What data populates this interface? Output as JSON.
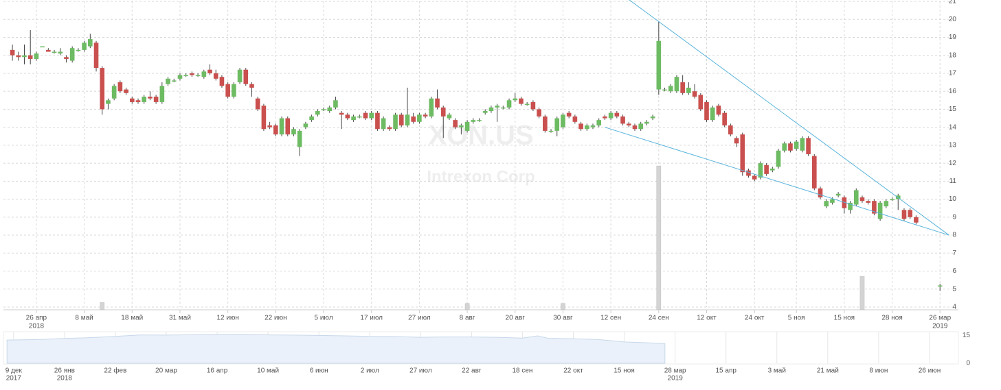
{
  "chart_data": {
    "type": "candlestick",
    "watermark": "XON.US",
    "watermark_subtitle": "Intrexon Corp",
    "up_color": "#6dbb62",
    "down_color": "#c9504e",
    "trend_color": "#5ab4dc",
    "volume_color": "#d4d4d4",
    "grid": true,
    "xlim": [
      -1.5,
      157.5
    ],
    "ylim": [
      4,
      21.1
    ],
    "yticks": [
      4,
      5,
      6,
      7,
      8,
      9,
      10,
      11,
      12,
      13,
      14,
      15,
      16,
      17,
      18,
      19,
      20,
      21
    ],
    "xticks": [
      {
        "value": 4,
        "label": "26 апр"
      },
      {
        "value": 12,
        "label": "8 май"
      },
      {
        "value": 20,
        "label": "18 май"
      },
      {
        "value": 28,
        "label": "31 май"
      },
      {
        "value": 36,
        "label": "12 июн"
      },
      {
        "value": 44,
        "label": "22 июн"
      },
      {
        "value": 52,
        "label": "5 июл"
      },
      {
        "value": 60,
        "label": "17 июл"
      },
      {
        "value": 68,
        "label": "27 июл"
      },
      {
        "value": 76,
        "label": "8 авг"
      },
      {
        "value": 84,
        "label": "20 авг"
      },
      {
        "value": 92,
        "label": "30 авг"
      },
      {
        "value": 100,
        "label": "12 сен"
      },
      {
        "value": 108,
        "label": "24 сен"
      },
      {
        "value": 116,
        "label": "12 окт"
      },
      {
        "value": 124,
        "label": "24 окт"
      },
      {
        "value": 131,
        "label": "5 ноя"
      },
      {
        "value": 139,
        "label": "15 ноя"
      },
      {
        "value": 147,
        "label": "28 ноя"
      },
      {
        "value": 155,
        "label": "26 мар"
      }
    ],
    "xtick_years": [
      {
        "value": 4,
        "label": "2018"
      },
      {
        "value": 155,
        "label": "2019"
      }
    ],
    "candles": [
      [
        18.3,
        18.6,
        17.7,
        18.0
      ],
      [
        18.0,
        18.2,
        17.7,
        17.9
      ],
      [
        17.9,
        18.6,
        17.5,
        18.0
      ],
      [
        18.0,
        19.4,
        17.5,
        17.8
      ],
      [
        17.8,
        18.2,
        17.7,
        18.1
      ],
      [
        18.5,
        18.5,
        18.5,
        18.5
      ],
      [
        18.3,
        18.4,
        18.2,
        18.2
      ],
      [
        18.2,
        18.3,
        18.1,
        18.2
      ],
      [
        18.1,
        18.4,
        18.0,
        18.2
      ],
      [
        17.9,
        18.0,
        17.6,
        17.8
      ],
      [
        17.7,
        18.5,
        17.6,
        18.4
      ],
      [
        18.3,
        18.4,
        18.2,
        18.3
      ],
      [
        18.3,
        18.8,
        18.2,
        18.7
      ],
      [
        18.5,
        19.2,
        18.4,
        18.9
      ],
      [
        18.7,
        18.8,
        17.1,
        17.3
      ],
      [
        17.3,
        17.4,
        14.7,
        15.0
      ],
      [
        15.3,
        15.6,
        15.0,
        15.5
      ],
      [
        15.6,
        16.4,
        15.5,
        16.3
      ],
      [
        16.5,
        16.6,
        15.9,
        16.0
      ],
      [
        16.1,
        16.2,
        15.8,
        15.9
      ],
      [
        15.6,
        15.7,
        15.3,
        15.4
      ],
      [
        15.5,
        15.6,
        15.3,
        15.4
      ],
      [
        15.4,
        15.8,
        15.3,
        15.7
      ],
      [
        15.7,
        16.0,
        15.5,
        15.6
      ],
      [
        15.7,
        15.8,
        15.3,
        15.4
      ],
      [
        15.4,
        16.5,
        15.3,
        16.3
      ],
      [
        16.4,
        16.8,
        16.3,
        16.7
      ],
      [
        16.6,
        16.7,
        16.5,
        16.6
      ],
      [
        16.7,
        17.0,
        16.6,
        16.9
      ],
      [
        16.9,
        17.0,
        16.8,
        16.9
      ],
      [
        17.0,
        17.1,
        16.8,
        16.9
      ],
      [
        16.9,
        17.0,
        16.8,
        16.9
      ],
      [
        16.8,
        17.2,
        16.7,
        17.1
      ],
      [
        17.2,
        17.5,
        16.9,
        17.0
      ],
      [
        17.0,
        17.2,
        16.6,
        16.7
      ],
      [
        16.8,
        16.9,
        16.2,
        16.3
      ],
      [
        16.4,
        16.5,
        15.6,
        15.7
      ],
      [
        15.7,
        16.5,
        15.6,
        16.4
      ],
      [
        16.5,
        17.3,
        16.4,
        17.2
      ],
      [
        17.2,
        17.3,
        16.3,
        16.4
      ],
      [
        16.4,
        16.5,
        15.7,
        16.2
      ],
      [
        15.6,
        15.7,
        14.9,
        15.0
      ],
      [
        15.2,
        15.3,
        13.8,
        13.9
      ],
      [
        14.1,
        14.3,
        13.9,
        14.0
      ],
      [
        14.1,
        14.2,
        13.5,
        13.6
      ],
      [
        13.6,
        14.6,
        13.5,
        14.5
      ],
      [
        14.5,
        14.6,
        13.5,
        13.6
      ],
      [
        13.6,
        14.0,
        13.5,
        13.9
      ],
      [
        12.9,
        13.9,
        12.4,
        13.8
      ],
      [
        14.0,
        14.3,
        13.9,
        14.2
      ],
      [
        14.4,
        14.7,
        14.3,
        14.6
      ],
      [
        14.7,
        15.0,
        14.6,
        14.9
      ],
      [
        15.0,
        15.1,
        14.9,
        15.0
      ],
      [
        14.9,
        15.2,
        14.8,
        15.1
      ],
      [
        15.1,
        15.7,
        15.0,
        15.5
      ],
      [
        14.8,
        14.9,
        13.9,
        14.7
      ],
      [
        14.7,
        14.8,
        14.4,
        14.5
      ],
      [
        14.4,
        14.7,
        14.3,
        14.6
      ],
      [
        14.6,
        14.7,
        14.5,
        14.6
      ],
      [
        14.8,
        14.9,
        14.4,
        14.5
      ],
      [
        14.5,
        14.9,
        14.4,
        14.8
      ],
      [
        14.8,
        14.9,
        13.8,
        13.9
      ],
      [
        13.9,
        14.6,
        13.8,
        14.5
      ],
      [
        14.0,
        14.1,
        13.8,
        13.9
      ],
      [
        13.9,
        14.8,
        13.8,
        14.7
      ],
      [
        14.7,
        14.8,
        14.0,
        14.1
      ],
      [
        14.1,
        16.2,
        14.0,
        14.7
      ],
      [
        14.6,
        14.8,
        14.2,
        14.3
      ],
      [
        14.3,
        14.8,
        14.2,
        14.7
      ],
      [
        14.7,
        14.8,
        14.5,
        14.6
      ],
      [
        14.6,
        15.7,
        14.5,
        15.6
      ],
      [
        15.6,
        16.1,
        15.0,
        15.1
      ],
      [
        15.1,
        15.2,
        13.4,
        14.6
      ],
      [
        14.5,
        14.8,
        14.4,
        14.7
      ],
      [
        14.4,
        14.5,
        13.9,
        14.0
      ],
      [
        14.0,
        14.2,
        13.6,
        14.1
      ],
      [
        13.8,
        14.4,
        13.7,
        14.3
      ],
      [
        14.3,
        14.5,
        14.2,
        14.4
      ],
      [
        14.4,
        14.5,
        14.3,
        14.4
      ],
      [
        14.8,
        15.0,
        14.7,
        14.9
      ],
      [
        14.9,
        15.2,
        14.8,
        15.1
      ],
      [
        15.1,
        15.3,
        14.3,
        15.2
      ],
      [
        15.1,
        15.2,
        15.0,
        15.1
      ],
      [
        15.1,
        15.6,
        15.0,
        15.5
      ],
      [
        15.5,
        15.9,
        15.4,
        15.6
      ],
      [
        15.6,
        15.7,
        15.2,
        15.3
      ],
      [
        15.3,
        15.4,
        15.2,
        15.3
      ],
      [
        15.4,
        15.5,
        14.9,
        15.0
      ],
      [
        15.0,
        15.1,
        14.5,
        14.6
      ],
      [
        14.6,
        14.7,
        13.7,
        13.8
      ],
      [
        13.8,
        13.9,
        13.7,
        13.8
      ],
      [
        13.8,
        14.6,
        13.5,
        14.5
      ],
      [
        14.0,
        14.8,
        13.9,
        14.7
      ],
      [
        14.8,
        14.9,
        14.5,
        14.6
      ],
      [
        14.6,
        14.7,
        14.2,
        14.3
      ],
      [
        14.2,
        14.3,
        13.8,
        13.9
      ],
      [
        13.9,
        14.2,
        13.8,
        14.1
      ],
      [
        14.0,
        14.2,
        13.9,
        14.1
      ],
      [
        14.1,
        14.5,
        14.0,
        14.4
      ],
      [
        14.6,
        14.7,
        14.4,
        14.5
      ],
      [
        14.5,
        14.9,
        14.4,
        14.8
      ],
      [
        14.8,
        14.9,
        14.5,
        14.6
      ],
      [
        14.6,
        14.7,
        14.1,
        14.2
      ],
      [
        14.2,
        14.3,
        14.0,
        14.1
      ],
      [
        14.1,
        14.2,
        13.8,
        13.9
      ],
      [
        13.9,
        14.3,
        13.8,
        14.2
      ],
      [
        14.2,
        14.4,
        14.1,
        14.3
      ],
      [
        14.5,
        14.7,
        14.4,
        14.6
      ],
      [
        16.1,
        19.9,
        15.8,
        18.8
      ],
      [
        16.1,
        16.2,
        16.0,
        16.1
      ],
      [
        16.0,
        16.4,
        15.9,
        16.3
      ],
      [
        16.0,
        16.9,
        15.9,
        16.8
      ],
      [
        16.5,
        16.9,
        15.8,
        15.9
      ],
      [
        15.9,
        16.5,
        15.8,
        16.2
      ],
      [
        16.0,
        16.4,
        15.6,
        15.7
      ],
      [
        15.8,
        15.9,
        14.9,
        15.0
      ],
      [
        15.4,
        15.5,
        14.3,
        14.4
      ],
      [
        14.4,
        15.2,
        14.3,
        15.1
      ],
      [
        15.2,
        15.3,
        14.6,
        14.7
      ],
      [
        14.8,
        14.9,
        14.0,
        14.1
      ],
      [
        14.1,
        14.2,
        13.5,
        13.6
      ],
      [
        13.4,
        13.5,
        12.9,
        13.1
      ],
      [
        13.6,
        13.7,
        11.3,
        11.5
      ],
      [
        11.6,
        11.7,
        11.2,
        11.3
      ],
      [
        11.3,
        11.4,
        11.0,
        11.1
      ],
      [
        11.2,
        12.1,
        11.1,
        12.0
      ],
      [
        11.9,
        12.0,
        11.3,
        11.4
      ],
      [
        11.6,
        11.8,
        11.5,
        11.7
      ],
      [
        11.8,
        12.8,
        11.7,
        12.7
      ],
      [
        12.7,
        13.2,
        12.6,
        13.1
      ],
      [
        13.1,
        13.2,
        12.6,
        12.7
      ],
      [
        12.8,
        13.3,
        12.7,
        13.2
      ],
      [
        12.7,
        13.5,
        12.6,
        13.4
      ],
      [
        13.4,
        13.5,
        12.4,
        12.5
      ],
      [
        12.4,
        12.5,
        10.5,
        10.6
      ],
      [
        10.6,
        10.7,
        10.0,
        10.1
      ],
      [
        9.6,
        10.0,
        9.5,
        9.9
      ],
      [
        9.8,
        10.1,
        9.7,
        10.0
      ],
      [
        10.2,
        10.4,
        10.1,
        10.3
      ],
      [
        10.1,
        10.2,
        9.2,
        9.5
      ],
      [
        9.4,
        9.9,
        9.2,
        9.8
      ],
      [
        9.7,
        10.6,
        9.6,
        10.5
      ],
      [
        10.1,
        10.2,
        9.8,
        9.9
      ],
      [
        9.9,
        10.0,
        9.7,
        9.8
      ],
      [
        9.9,
        10.0,
        9.1,
        9.2
      ],
      [
        8.9,
        9.9,
        8.8,
        9.8
      ],
      [
        9.6,
        10.0,
        9.5,
        9.9
      ],
      [
        10.0,
        10.1,
        9.9,
        10.0
      ],
      [
        10.0,
        10.3,
        9.4,
        10.2
      ],
      [
        9.4,
        9.5,
        8.8,
        8.9
      ],
      [
        9.4,
        9.5,
        8.9,
        9.0
      ],
      [
        9.0,
        9.1,
        8.6,
        8.7
      ],
      null,
      null,
      null,
      [
        5.2,
        5.3,
        4.9,
        5.2
      ]
    ],
    "volume": {
      "x": [
        15,
        76,
        92,
        108,
        142
      ],
      "values": [
        4.25,
        4.2,
        4.2,
        11.85,
        5.7
      ]
    },
    "trendlines": [
      {
        "x": [
          103,
          156.5
        ],
        "y": [
          21.1,
          8.0
        ]
      },
      {
        "x": [
          99,
          156.5
        ],
        "y": [
          14.0,
          8.0
        ]
      }
    ],
    "navigator": {
      "color": "#eaf1fa",
      "line_color": "#c7d8ea",
      "xlim": [
        -0.2,
        18.5
      ],
      "ylim": [
        0,
        17
      ],
      "yticks": [
        0,
        15
      ],
      "xticks": [
        {
          "value": 0,
          "label": "9 дек"
        },
        {
          "value": 1,
          "label": "26 янв"
        },
        {
          "value": 2,
          "label": "22 фев"
        },
        {
          "value": 3,
          "label": "20 мар"
        },
        {
          "value": 4,
          "label": "16 апр"
        },
        {
          "value": 5,
          "label": "10 май"
        },
        {
          "value": 6,
          "label": "6 июн"
        },
        {
          "value": 7,
          "label": "2 июл"
        },
        {
          "value": 8,
          "label": "27 июл"
        },
        {
          "value": 9,
          "label": "22 авг"
        },
        {
          "value": 10,
          "label": "18 сен"
        },
        {
          "value": 11,
          "label": "22 окт"
        },
        {
          "value": 12,
          "label": "15 ноя"
        },
        {
          "value": 13,
          "label": "28 мар"
        },
        {
          "value": 14,
          "label": "15 апр"
        },
        {
          "value": 15,
          "label": "3 май"
        },
        {
          "value": 16,
          "label": "21 май"
        },
        {
          "value": 17,
          "label": "8 июн"
        },
        {
          "value": 18,
          "label": "26 июн"
        }
      ],
      "xtick_years": [
        {
          "value": 0,
          "label": "2017"
        },
        {
          "value": 1,
          "label": "2018"
        },
        {
          "value": 13,
          "label": "2019"
        }
      ],
      "x": [
        -0.13,
        0.5,
        1,
        1.5,
        2,
        2.5,
        3,
        3.5,
        4,
        4.5,
        5,
        5.5,
        6,
        6.5,
        7,
        7.5,
        8,
        8.5,
        9,
        9.5,
        10,
        10.3,
        10.5,
        11,
        11.5,
        12,
        12.5,
        12.8
      ],
      "values": [
        12.5,
        12.8,
        13.4,
        13.8,
        14.5,
        15.3,
        15.2,
        15.4,
        15.5,
        15.6,
        15.3,
        15.2,
        15.0,
        14.8,
        14.5,
        14.4,
        14.0,
        14.2,
        14.2,
        14.0,
        13.6,
        14.8,
        13.5,
        13.2,
        12.8,
        11.5,
        11.0,
        10.6
      ]
    }
  }
}
